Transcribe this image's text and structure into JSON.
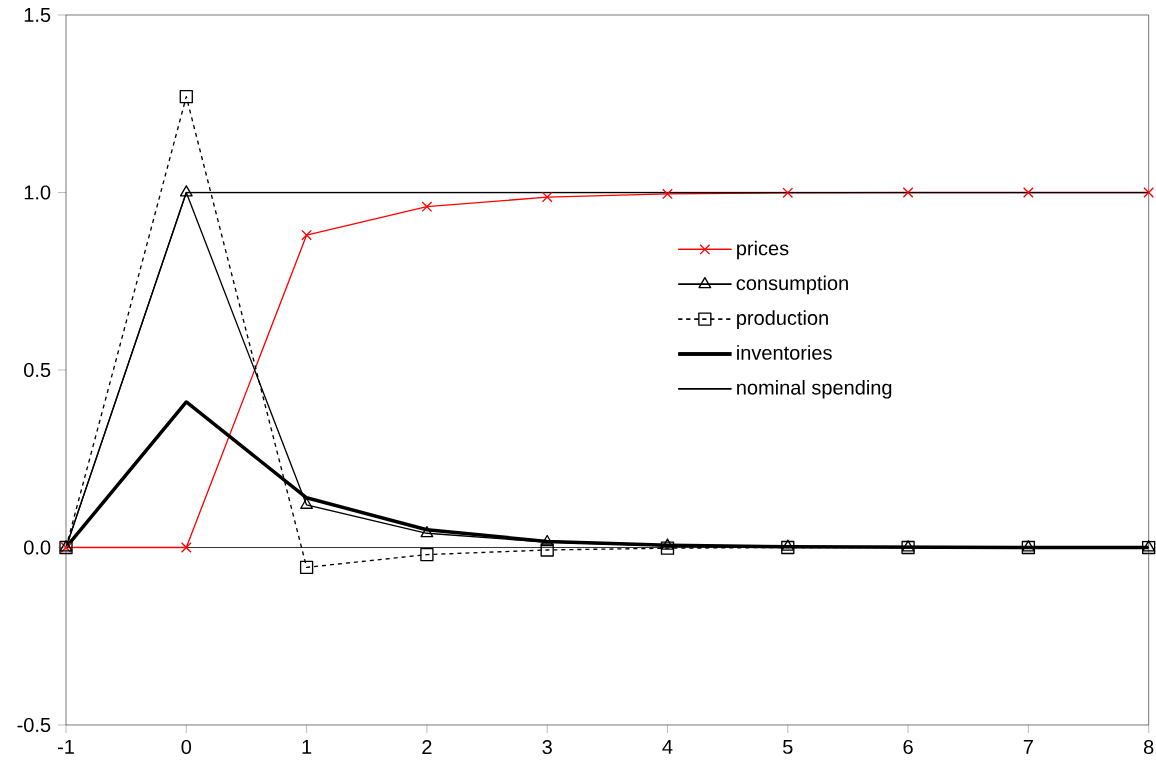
{
  "chart_data": {
    "type": "line",
    "x": [
      -1,
      0,
      1,
      2,
      3,
      4,
      5,
      6,
      7,
      8
    ],
    "series": [
      {
        "name": "prices",
        "color": "#ff0000",
        "marker": "cross",
        "line_style": "solid",
        "values": [
          0,
          0,
          0.88,
          0.96,
          0.987,
          0.996,
          0.999,
          1,
          1,
          1
        ]
      },
      {
        "name": "consumption",
        "color": "#000000",
        "marker": "triangle",
        "line_style": "solid",
        "values": [
          0,
          1,
          0.12,
          0.04,
          0.015,
          0.005,
          0.002,
          0,
          0,
          0
        ]
      },
      {
        "name": "production",
        "color": "#000000",
        "marker": "square",
        "line_style": "dotted",
        "values": [
          0,
          1.27,
          -0.056,
          -0.02,
          -0.007,
          -0.002,
          0,
          0,
          0,
          0
        ]
      },
      {
        "name": "inventories",
        "color": "#000000",
        "marker": "none",
        "line_style": "solid",
        "values": [
          0,
          0.41,
          0.14,
          0.05,
          0.017,
          0.006,
          0.002,
          0.001,
          0,
          0
        ]
      },
      {
        "name": "nominal spending",
        "color": "#000000",
        "marker": "none",
        "line_style": "solid",
        "values": [
          0,
          1,
          1,
          1,
          1,
          1,
          1,
          1,
          1,
          1
        ]
      }
    ],
    "xlim": [
      -1,
      8
    ],
    "ylim": [
      -0.5,
      1.5
    ],
    "xticks": [
      -1,
      0,
      1,
      2,
      3,
      4,
      5,
      6,
      7,
      8
    ],
    "yticks": [
      -0.5,
      {
        "value": 0,
        "label": "0.0"
      },
      0.5,
      {
        "value": 1,
        "label": "1.0"
      },
      1.5
    ],
    "ref_lines": [
      {
        "axis": "y",
        "value": 0,
        "color": "#000000"
      }
    ],
    "legend": "right"
  }
}
